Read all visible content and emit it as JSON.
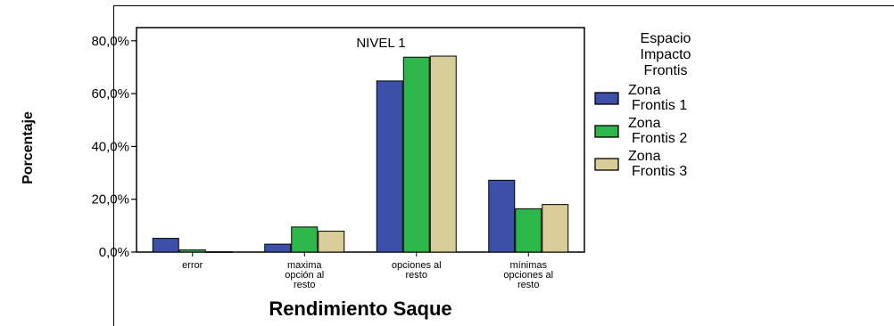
{
  "chart_data": {
    "type": "bar",
    "title": "NIVEL 1",
    "xlabel": "Rendimiento Saque",
    "ylabel": "Porcentaje",
    "ylim": [
      0,
      85
    ],
    "yticks": [
      "0,0%",
      "20,0%",
      "40,0%",
      "60,0%",
      "80,0%"
    ],
    "ytick_values": [
      0,
      20,
      40,
      60,
      80
    ],
    "categories": [
      [
        "error"
      ],
      [
        "maxima",
        "opción al",
        "resto"
      ],
      [
        "opciones al",
        "resto"
      ],
      [
        "mínimas",
        "opciones al",
        "resto"
      ]
    ],
    "legend": {
      "title": [
        "Espacio",
        "Impacto",
        "Frontis"
      ],
      "placement": "right"
    },
    "series": [
      {
        "name": [
          "Zona",
          "Frontis 1"
        ],
        "color": "#3c50a8",
        "values": [
          5.2,
          3.0,
          64.8,
          27.2
        ]
      },
      {
        "name": [
          "Zona",
          "Frontis 2"
        ],
        "color": "#2db64a",
        "values": [
          0.8,
          9.5,
          73.8,
          16.4
        ]
      },
      {
        "name": [
          "Zona",
          "Frontis 3"
        ],
        "color": "#d8cc98",
        "values": [
          0.1,
          7.9,
          74.2,
          18.0
        ]
      }
    ],
    "grid": false
  }
}
